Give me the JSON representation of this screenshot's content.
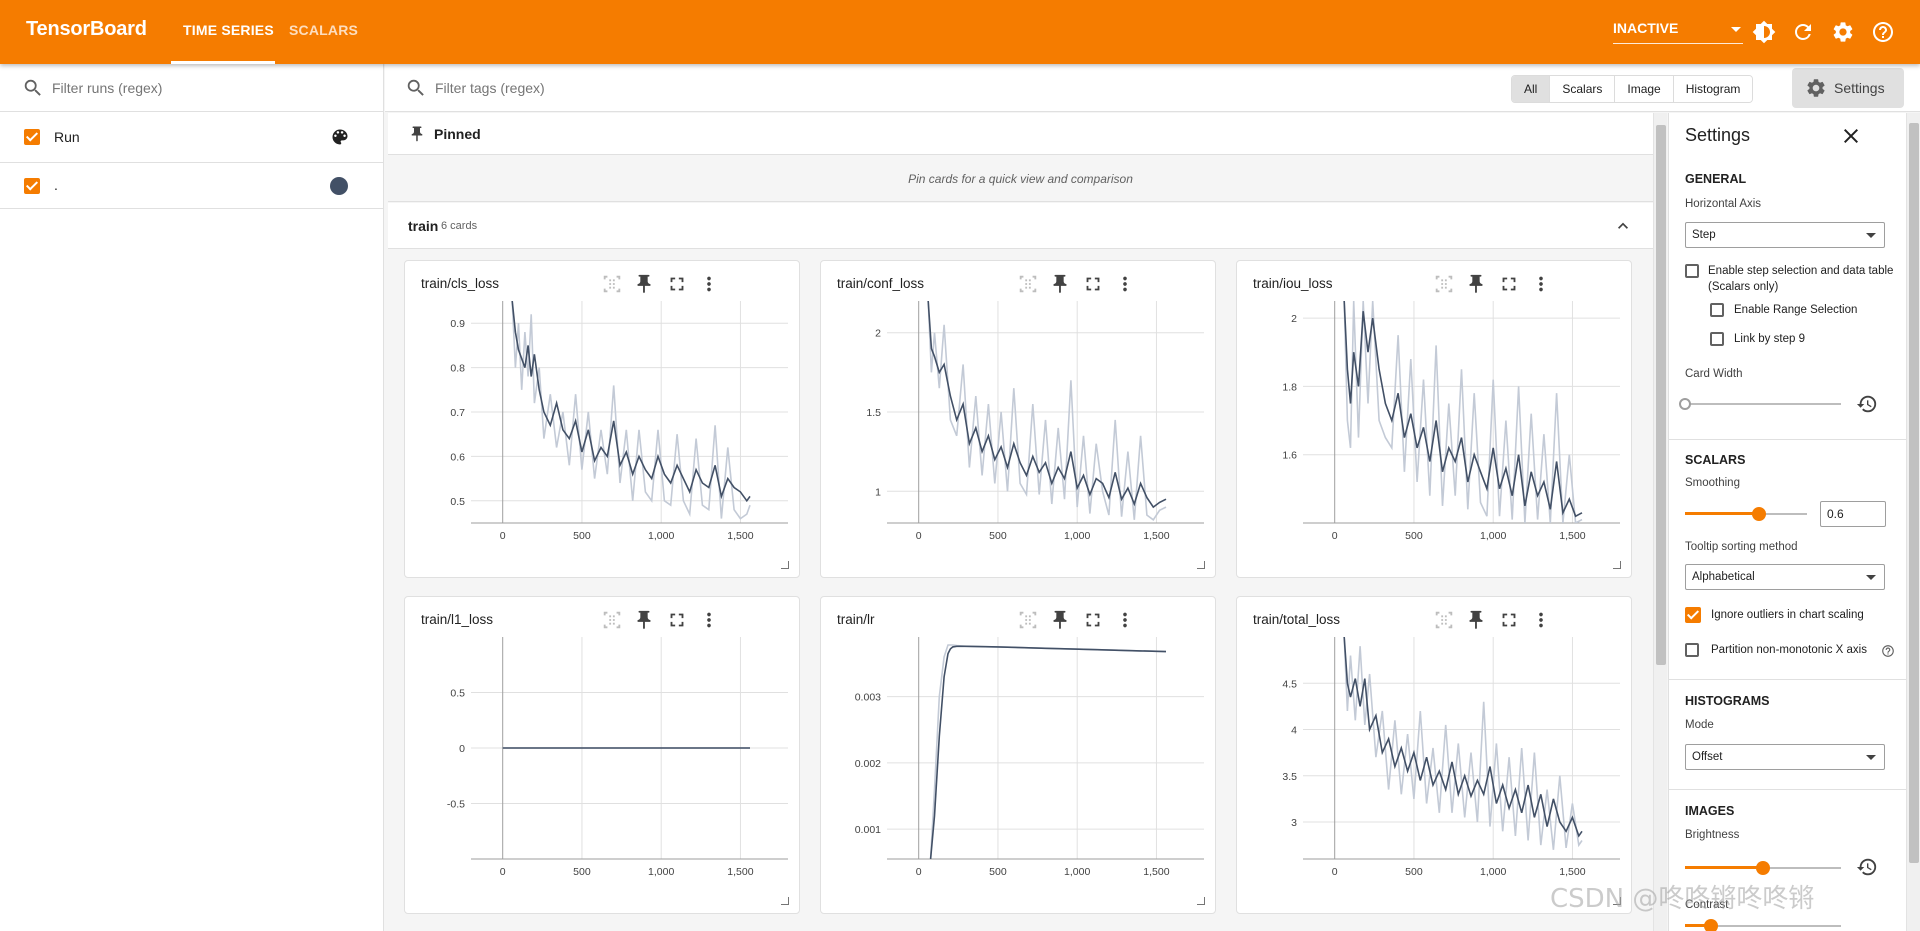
{
  "app": {
    "title": "TensorBoard"
  },
  "nav": {
    "tabs": [
      "TIME SERIES",
      "SCALARS"
    ],
    "active": "TIME SERIES"
  },
  "header": {
    "status": "INACTIVE",
    "icons": [
      "brightness-icon",
      "refresh-icon",
      "gear-icon",
      "help-icon"
    ]
  },
  "sidebar": {
    "filter_placeholder": "Filter runs (regex)",
    "runs": [
      {
        "label": "Run",
        "checked": true,
        "icon": "palette-icon"
      },
      {
        "label": ".",
        "checked": true,
        "color": "#425066"
      }
    ]
  },
  "toolbar": {
    "tags_placeholder": "Filter tags (regex)",
    "filters": [
      "All",
      "Scalars",
      "Image",
      "Histogram"
    ],
    "active_filter": "All",
    "settings_label": "Settings"
  },
  "pinned": {
    "title": "Pinned",
    "empty_message": "Pin cards for a quick view and comparison"
  },
  "group": {
    "name": "train",
    "count": "6 cards"
  },
  "colors": {
    "accent": "#f57c00",
    "series": "#425066",
    "raw": "#c3cad6"
  },
  "cards": [
    {
      "title": "train/cls_loss",
      "chart_data": {
        "type": "line",
        "x_range": [
          -200,
          1800
        ],
        "ylim": [
          0.45,
          0.95
        ],
        "x_ticks": [
          {
            "v": 0,
            "t": "0"
          },
          {
            "v": 500,
            "t": "500"
          },
          {
            "v": 1000,
            "t": "1,000"
          },
          {
            "v": 1500,
            "t": "1,500"
          }
        ],
        "y_ticks": [
          {
            "v": 0.9,
            "t": "0.9"
          },
          {
            "v": 0.8,
            "t": "0.8"
          },
          {
            "v": 0.7,
            "t": "0.7"
          },
          {
            "v": 0.6,
            "t": "0.6"
          },
          {
            "v": 0.5,
            "t": "0.5"
          }
        ],
        "x": [
          60,
          80,
          100,
          120,
          140,
          160,
          180,
          200,
          230,
          260,
          300,
          340,
          380,
          420,
          460,
          500,
          540,
          580,
          620,
          660,
          700,
          740,
          780,
          820,
          860,
          900,
          940,
          980,
          1020,
          1060,
          1100,
          1140,
          1180,
          1220,
          1260,
          1300,
          1340,
          1380,
          1420,
          1460,
          1500,
          1540,
          1560
        ],
        "smoothed": [
          0.95,
          0.88,
          0.84,
          0.82,
          0.8,
          0.85,
          0.78,
          0.83,
          0.75,
          0.7,
          0.67,
          0.72,
          0.66,
          0.64,
          0.68,
          0.61,
          0.66,
          0.59,
          0.62,
          0.6,
          0.68,
          0.58,
          0.61,
          0.56,
          0.6,
          0.57,
          0.55,
          0.6,
          0.56,
          0.54,
          0.58,
          0.55,
          0.52,
          0.57,
          0.54,
          0.53,
          0.58,
          0.51,
          0.55,
          0.53,
          0.52,
          0.5,
          0.51
        ],
        "raw": [
          0.95,
          0.8,
          0.9,
          0.75,
          0.88,
          0.78,
          0.92,
          0.72,
          0.8,
          0.64,
          0.74,
          0.62,
          0.7,
          0.58,
          0.74,
          0.57,
          0.7,
          0.55,
          0.66,
          0.56,
          0.76,
          0.54,
          0.66,
          0.5,
          0.66,
          0.52,
          0.5,
          0.66,
          0.5,
          0.49,
          0.65,
          0.5,
          0.47,
          0.64,
          0.49,
          0.48,
          0.67,
          0.46,
          0.62,
          0.48,
          0.46,
          0.47,
          0.49
        ]
      }
    },
    {
      "title": "train/conf_loss",
      "chart_data": {
        "type": "line",
        "x_range": [
          -200,
          1800
        ],
        "ylim": [
          0.8,
          2.2
        ],
        "x_ticks": [
          {
            "v": 0,
            "t": "0"
          },
          {
            "v": 500,
            "t": "500"
          },
          {
            "v": 1000,
            "t": "1,000"
          },
          {
            "v": 1500,
            "t": "1,500"
          }
        ],
        "y_ticks": [
          {
            "v": 2,
            "t": "2"
          },
          {
            "v": 1.5,
            "t": "1.5"
          },
          {
            "v": 1,
            "t": "1"
          }
        ],
        "x": [
          60,
          80,
          100,
          130,
          160,
          200,
          240,
          280,
          320,
          360,
          400,
          440,
          480,
          520,
          560,
          600,
          640,
          680,
          720,
          760,
          800,
          840,
          880,
          920,
          960,
          1000,
          1040,
          1080,
          1120,
          1160,
          1200,
          1240,
          1280,
          1320,
          1360,
          1400,
          1440,
          1480,
          1520,
          1560
        ],
        "smoothed": [
          2.2,
          1.9,
          1.85,
          1.75,
          1.8,
          1.6,
          1.45,
          1.55,
          1.3,
          1.4,
          1.25,
          1.35,
          1.2,
          1.28,
          1.15,
          1.3,
          1.18,
          1.1,
          1.22,
          1.12,
          1.18,
          1.05,
          1.15,
          1.08,
          1.25,
          1.02,
          1.1,
          0.98,
          1.08,
          1.05,
          0.96,
          1.12,
          0.95,
          1.02,
          0.92,
          1.05,
          0.96,
          0.9,
          0.93,
          0.95
        ],
        "raw": [
          2.2,
          1.75,
          2.0,
          1.65,
          2.05,
          1.45,
          1.35,
          1.8,
          1.15,
          1.6,
          1.1,
          1.55,
          1.05,
          1.5,
          1.0,
          1.65,
          1.05,
          0.98,
          1.55,
          0.98,
          1.45,
          0.92,
          1.4,
          0.95,
          1.7,
          0.9,
          1.35,
          0.86,
          1.3,
          1.0,
          0.85,
          1.45,
          0.84,
          1.25,
          0.82,
          1.35,
          0.85,
          0.82,
          0.88,
          0.9
        ]
      }
    },
    {
      "title": "train/iou_loss",
      "chart_data": {
        "type": "line",
        "x_range": [
          -200,
          1800
        ],
        "ylim": [
          1.4,
          2.05
        ],
        "x_ticks": [
          {
            "v": 0,
            "t": "0"
          },
          {
            "v": 500,
            "t": "500"
          },
          {
            "v": 1000,
            "t": "1,000"
          },
          {
            "v": 1500,
            "t": "1,500"
          }
        ],
        "y_ticks": [
          {
            "v": 2,
            "t": "2"
          },
          {
            "v": 1.8,
            "t": "1.8"
          },
          {
            "v": 1.6,
            "t": "1.6"
          }
        ],
        "x": [
          60,
          80,
          100,
          120,
          150,
          180,
          210,
          240,
          280,
          320,
          360,
          400,
          440,
          480,
          520,
          560,
          600,
          640,
          680,
          720,
          760,
          800,
          840,
          880,
          920,
          960,
          1000,
          1040,
          1080,
          1120,
          1160,
          1200,
          1240,
          1280,
          1320,
          1360,
          1400,
          1440,
          1480,
          1520,
          1560
        ],
        "smoothed": [
          2.05,
          1.85,
          1.75,
          1.9,
          1.8,
          2.02,
          1.9,
          2.0,
          1.85,
          1.75,
          1.7,
          1.78,
          1.65,
          1.72,
          1.62,
          1.68,
          1.58,
          1.7,
          1.55,
          1.62,
          1.58,
          1.65,
          1.52,
          1.6,
          1.55,
          1.5,
          1.62,
          1.5,
          1.56,
          1.48,
          1.6,
          1.45,
          1.55,
          1.48,
          1.52,
          1.44,
          1.58,
          1.43,
          1.47,
          1.42,
          1.43
        ],
        "raw": [
          2.05,
          1.7,
          1.62,
          2.05,
          1.65,
          2.05,
          1.75,
          2.05,
          1.7,
          1.65,
          1.62,
          1.95,
          1.55,
          1.88,
          1.52,
          1.82,
          1.48,
          1.92,
          1.45,
          1.75,
          1.48,
          1.85,
          1.44,
          1.78,
          1.46,
          1.42,
          1.82,
          1.42,
          1.7,
          1.41,
          1.8,
          1.4,
          1.72,
          1.41,
          1.66,
          1.4,
          1.78,
          1.4,
          1.6,
          1.4,
          1.41
        ]
      }
    },
    {
      "title": "train/l1_loss",
      "chart_data": {
        "type": "line",
        "x_range": [
          -200,
          1800
        ],
        "ylim": [
          -1,
          1
        ],
        "x_ticks": [
          {
            "v": 0,
            "t": "0"
          },
          {
            "v": 500,
            "t": "500"
          },
          {
            "v": 1000,
            "t": "1,000"
          },
          {
            "v": 1500,
            "t": "1,500"
          }
        ],
        "y_ticks": [
          {
            "v": 0.5,
            "t": "0.5"
          },
          {
            "v": 0,
            "t": "0"
          },
          {
            "v": -0.5,
            "t": "-0.5"
          }
        ],
        "x": [
          0,
          1560
        ],
        "smoothed": [
          0,
          0
        ],
        "raw": [
          0,
          0
        ]
      }
    },
    {
      "title": "train/lr",
      "chart_data": {
        "type": "line",
        "x_range": [
          -200,
          1800
        ],
        "ylim": [
          0.00055,
          0.0039
        ],
        "x_ticks": [
          {
            "v": 0,
            "t": "0"
          },
          {
            "v": 500,
            "t": "500"
          },
          {
            "v": 1000,
            "t": "1,000"
          },
          {
            "v": 1500,
            "t": "1,500"
          }
        ],
        "y_ticks": [
          {
            "v": 0.003,
            "t": "0.003"
          },
          {
            "v": 0.002,
            "t": "0.002"
          },
          {
            "v": 0.001,
            "t": "0.001"
          }
        ],
        "x": [
          75,
          100,
          130,
          160,
          185,
          200,
          215,
          240,
          300,
          500,
          800,
          1100,
          1400,
          1560
        ],
        "smoothed": [
          0.00055,
          0.0012,
          0.0024,
          0.0033,
          0.00365,
          0.00372,
          0.00375,
          0.00376,
          0.00376,
          0.00375,
          0.00373,
          0.00371,
          0.00369,
          0.00368
        ],
        "raw": [
          0.00055,
          0.0016,
          0.003,
          0.0036,
          0.00378,
          0.00378,
          0.00378,
          0.00377,
          0.00376,
          0.00375,
          0.00373,
          0.00371,
          0.00369,
          0.00368
        ]
      }
    },
    {
      "title": "train/total_loss",
      "chart_data": {
        "type": "line",
        "x_range": [
          -200,
          1800
        ],
        "ylim": [
          2.6,
          5.0
        ],
        "x_ticks": [
          {
            "v": 0,
            "t": "0"
          },
          {
            "v": 500,
            "t": "500"
          },
          {
            "v": 1000,
            "t": "1,000"
          },
          {
            "v": 1500,
            "t": "1,500"
          }
        ],
        "y_ticks": [
          {
            "v": 4.5,
            "t": "4.5"
          },
          {
            "v": 4,
            "t": "4"
          },
          {
            "v": 3.5,
            "t": "3.5"
          },
          {
            "v": 3,
            "t": "3"
          }
        ],
        "x": [
          60,
          80,
          100,
          130,
          160,
          190,
          220,
          260,
          300,
          340,
          380,
          420,
          460,
          500,
          540,
          580,
          620,
          660,
          700,
          740,
          780,
          820,
          860,
          900,
          940,
          980,
          1020,
          1060,
          1100,
          1140,
          1180,
          1220,
          1260,
          1300,
          1340,
          1380,
          1420,
          1460,
          1500,
          1540,
          1560
        ],
        "smoothed": [
          5.0,
          4.5,
          4.35,
          4.55,
          4.25,
          4.55,
          4.0,
          4.15,
          3.75,
          3.9,
          3.6,
          3.8,
          3.55,
          3.75,
          3.45,
          3.7,
          3.4,
          3.55,
          3.35,
          3.65,
          3.3,
          3.5,
          3.28,
          3.45,
          3.3,
          3.6,
          3.2,
          3.4,
          3.15,
          3.35,
          3.1,
          3.4,
          3.05,
          3.3,
          2.95,
          3.25,
          3.0,
          2.9,
          3.05,
          2.85,
          2.9
        ],
        "raw": [
          5.0,
          4.2,
          4.8,
          4.1,
          4.9,
          4.05,
          4.6,
          3.7,
          4.2,
          3.35,
          4.1,
          3.3,
          3.95,
          3.25,
          4.2,
          3.2,
          3.8,
          3.1,
          4.05,
          3.1,
          3.85,
          3.05,
          3.75,
          3.0,
          4.3,
          2.95,
          3.85,
          2.9,
          3.7,
          2.85,
          3.8,
          2.8,
          3.75,
          2.75,
          3.35,
          2.7,
          3.5,
          2.72,
          3.2,
          2.75,
          2.8
        ]
      }
    }
  ],
  "settings": {
    "title": "Settings",
    "general": {
      "section": "GENERAL",
      "horizontal_axis_label": "Horizontal Axis",
      "horizontal_axis_value": "Step",
      "step_selection_label": "Enable step selection and data table",
      "step_selection_sub": "(Scalars only)",
      "range_selection_label": "Enable Range Selection",
      "link_by_step_label": "Link by step 9",
      "card_width_label": "Card Width"
    },
    "scalars": {
      "section": "SCALARS",
      "smoothing_label": "Smoothing",
      "smoothing_value": "0.6",
      "tooltip_sort_label": "Tooltip sorting method",
      "tooltip_sort_value": "Alphabetical",
      "ignore_outliers_label": "Ignore outliers in chart scaling",
      "partition_label": "Partition non-monotonic X axis"
    },
    "histograms": {
      "section": "HISTOGRAMS",
      "mode_label": "Mode",
      "mode_value": "Offset"
    },
    "images": {
      "section": "IMAGES",
      "brightness_label": "Brightness",
      "contrast_label": "Contrast"
    }
  },
  "watermark": "CSDN @咚咚锵咚咚锵"
}
